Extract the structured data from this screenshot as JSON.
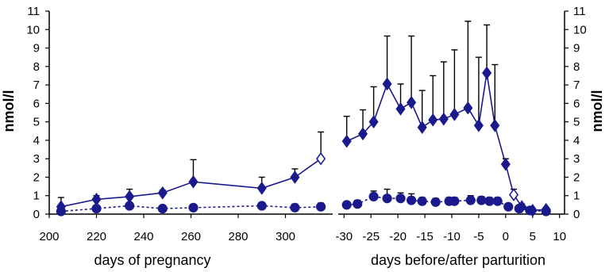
{
  "chart_data": [
    {
      "type": "line",
      "xlabel": "days of pregnancy",
      "ylabel": "nmol/l",
      "xlim": [
        200,
        320
      ],
      "ylim": [
        0,
        11
      ],
      "x_ticks": [
        "200",
        "220",
        "240",
        "260",
        "280",
        "300"
      ],
      "y_ticks": [
        "0",
        "1",
        "2",
        "3",
        "4",
        "5",
        "6",
        "7",
        "8",
        "9",
        "10",
        "11"
      ],
      "series": [
        {
          "marker": "diamond",
          "line_style": "solid",
          "points": [
            {
              "x": 205,
              "y": 0.4,
              "err": 0.5
            },
            {
              "x": 220,
              "y": 0.8,
              "err": 0.2
            },
            {
              "x": 234,
              "y": 0.95,
              "err": 0.4
            },
            {
              "x": 248,
              "y": 1.15,
              "err": 0.15
            },
            {
              "x": 261,
              "y": 1.75,
              "err": 1.2
            },
            {
              "x": 290,
              "y": 1.4,
              "err": 0.6
            },
            {
              "x": 304,
              "y": 2.0,
              "err": 0.45
            },
            {
              "x": 315,
              "y": 3.0,
              "err": 1.45,
              "open": true
            }
          ]
        },
        {
          "marker": "circle",
          "line_style": "dotted",
          "points": [
            {
              "x": 205,
              "y": 0.15,
              "err": 0.1
            },
            {
              "x": 220,
              "y": 0.3,
              "err": 0.1
            },
            {
              "x": 234,
              "y": 0.45,
              "err": 0.15
            },
            {
              "x": 248,
              "y": 0.3,
              "err": 0.1
            },
            {
              "x": 261,
              "y": 0.35,
              "err": 0.1
            },
            {
              "x": 290,
              "y": 0.45,
              "err": 0.15
            },
            {
              "x": 304,
              "y": 0.35,
              "err": 0.2
            },
            {
              "x": 315,
              "y": 0.4,
              "err": 0.2
            }
          ]
        }
      ]
    },
    {
      "type": "line",
      "xlabel": "days before/after parturition",
      "ylabel": "nmol/l",
      "xlim": [
        -31,
        11
      ],
      "ylim": [
        0,
        11
      ],
      "x_ticks": [
        "-30",
        "-25",
        "-20",
        "-15",
        "-10",
        "-5",
        "0",
        "5",
        "10"
      ],
      "y_ticks": [
        "0",
        "1",
        "2",
        "3",
        "4",
        "5",
        "6",
        "7",
        "8",
        "9",
        "10",
        "11"
      ],
      "series": [
        {
          "marker": "diamond",
          "line_style": "solid",
          "points": [
            {
              "x": -29.5,
              "y": 3.95,
              "err": 1.35
            },
            {
              "x": -26.5,
              "y": 4.35,
              "err": 1.3
            },
            {
              "x": -24.5,
              "y": 5.0,
              "err": 1.9
            },
            {
              "x": -22,
              "y": 7.05,
              "err": 2.6
            },
            {
              "x": -19.5,
              "y": 5.7,
              "err": 1.35
            },
            {
              "x": -17.5,
              "y": 6.05,
              "err": 3.6
            },
            {
              "x": -15.5,
              "y": 4.7,
              "err": 2.0
            },
            {
              "x": -13.5,
              "y": 5.1,
              "err": 2.4
            },
            {
              "x": -11.5,
              "y": 5.15,
              "err": 3.1
            },
            {
              "x": -9.5,
              "y": 5.4,
              "err": 3.5
            },
            {
              "x": -7,
              "y": 5.75,
              "err": 4.7
            },
            {
              "x": -5,
              "y": 4.8,
              "err": 3.7
            },
            {
              "x": -3.5,
              "y": 7.65,
              "err": 2.6
            },
            {
              "x": -2,
              "y": 4.8,
              "err": 3.3
            },
            {
              "x": 0,
              "y": 2.7,
              "err": 0.3
            },
            {
              "x": 1.5,
              "y": 1.05,
              "err": 0.3,
              "open": true
            },
            {
              "x": 3,
              "y": 0.4,
              "err": 0.15
            },
            {
              "x": 5,
              "y": 0.2,
              "err": 0.1
            },
            {
              "x": 7.5,
              "y": 0.25,
              "err": 0.1
            }
          ]
        },
        {
          "marker": "circle",
          "line_style": "dotted",
          "points": [
            {
              "x": -29.5,
              "y": 0.5,
              "err": 0.15
            },
            {
              "x": -27.5,
              "y": 0.55,
              "err": 0.2
            },
            {
              "x": -24.5,
              "y": 0.95,
              "err": 0.3
            },
            {
              "x": -22,
              "y": 0.85,
              "err": 0.5
            },
            {
              "x": -19.5,
              "y": 0.85,
              "err": 0.3
            },
            {
              "x": -17.5,
              "y": 0.75,
              "err": 0.35
            },
            {
              "x": -15.5,
              "y": 0.7,
              "err": 0.2
            },
            {
              "x": -13,
              "y": 0.65,
              "err": 0.2
            },
            {
              "x": -10.5,
              "y": 0.7,
              "err": 0.2
            },
            {
              "x": -9.5,
              "y": 0.7,
              "err": 0.2
            },
            {
              "x": -6.5,
              "y": 0.75,
              "err": 0.25
            },
            {
              "x": -4.5,
              "y": 0.75,
              "err": 0.2
            },
            {
              "x": -3,
              "y": 0.7,
              "err": 0.2
            },
            {
              "x": -1.5,
              "y": 0.7,
              "err": 0.2
            },
            {
              "x": 0.5,
              "y": 0.4,
              "err": 0.1
            },
            {
              "x": 2.5,
              "y": 0.3,
              "err": 0.1
            },
            {
              "x": 4.5,
              "y": 0.2,
              "err": 0.1
            },
            {
              "x": 7.5,
              "y": 0.15,
              "err": 0.1
            }
          ]
        }
      ]
    }
  ],
  "colors": {
    "series_main": "#1a1a8c",
    "open_marker_fill": "#ffffff",
    "error_bar": "#000000",
    "axis": "#000000"
  }
}
